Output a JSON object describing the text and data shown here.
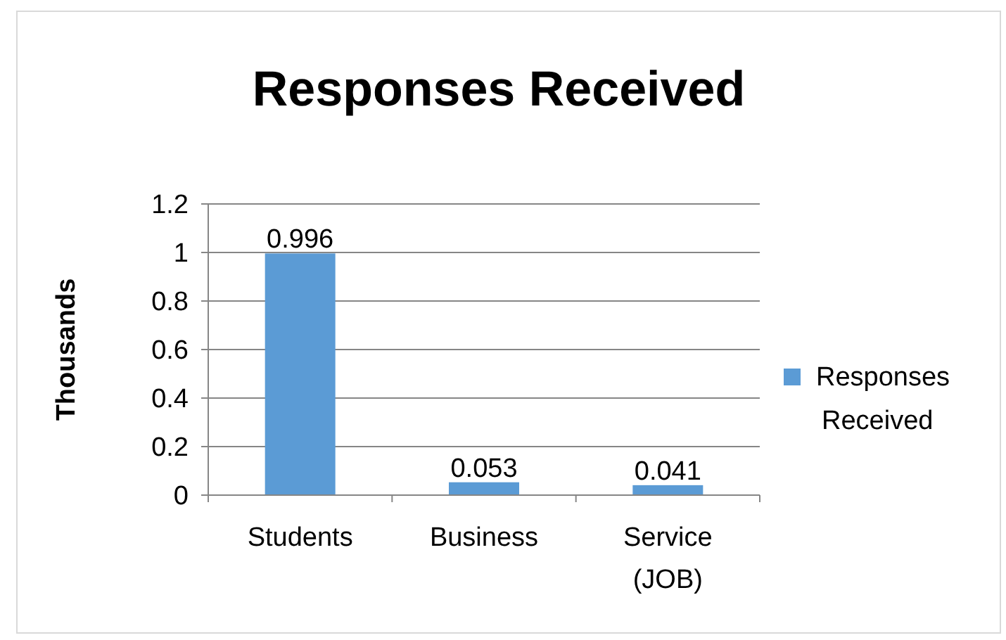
{
  "chart_data": {
    "type": "bar",
    "title": "Responses Received",
    "ylabel": "Thousands",
    "categories": [
      "Students",
      "Business",
      "Service (JOB)"
    ],
    "series": [
      {
        "name": "Responses Received",
        "color": "#5b9bd5",
        "values": [
          0.996,
          0.053,
          0.041
        ]
      }
    ],
    "ylim": [
      0,
      1.2
    ],
    "yticks": [
      0,
      0.2,
      0.4,
      0.6,
      0.8,
      1,
      1.2
    ],
    "grid": "y",
    "legend": "right",
    "data_labels": true
  }
}
